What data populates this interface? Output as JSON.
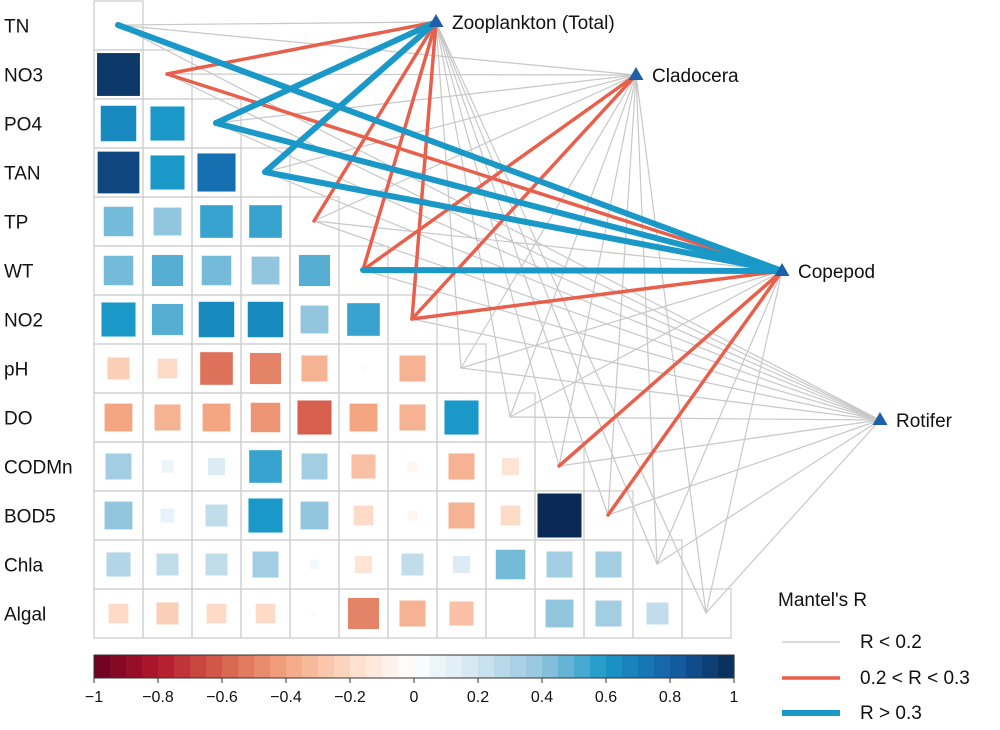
{
  "chart_data": {
    "type": "heatmap",
    "variables": [
      "TN",
      "NO3",
      "PO4",
      "TAN",
      "TP",
      "WT",
      "NO2",
      "pH",
      "DO",
      "CODMn",
      "BOD5",
      "Chla",
      "Algal"
    ],
    "correlations": [
      [],
      [
        0.95
      ],
      [
        0.65,
        0.6
      ],
      [
        0.9,
        0.6,
        0.75
      ],
      [
        0.45,
        0.4,
        0.55,
        0.55
      ],
      [
        0.45,
        0.5,
        0.45,
        0.4,
        0.5
      ],
      [
        0.6,
        0.5,
        0.65,
        0.65,
        0.4,
        0.55
      ],
      [
        -0.25,
        -0.2,
        -0.55,
        -0.5,
        -0.35,
        -0.02,
        -0.35
      ],
      [
        -0.4,
        -0.35,
        -0.4,
        -0.45,
        -0.6,
        -0.4,
        -0.35,
        0.6
      ],
      [
        0.35,
        0.08,
        0.15,
        0.55,
        0.35,
        -0.3,
        -0.05,
        -0.35,
        -0.15
      ],
      [
        0.4,
        0.1,
        0.25,
        0.6,
        0.4,
        -0.2,
        -0.05,
        -0.35,
        -0.2,
        1.0
      ],
      [
        0.3,
        0.25,
        0.25,
        0.35,
        0.05,
        -0.15,
        0.25,
        0.15,
        0.45,
        0.35,
        0.35
      ],
      [
        -0.2,
        -0.25,
        -0.2,
        -0.2,
        -0.02,
        -0.5,
        -0.35,
        -0.3,
        0.0,
        0.4,
        0.35,
        0.25
      ]
    ],
    "targets": [
      "Zooplankton (Total)",
      "Cladocera",
      "Copepod",
      "Rotifer"
    ],
    "mantel_links": {
      "Zooplankton (Total)": [
        "weak",
        "medium",
        "strong",
        "strong",
        "medium",
        "medium",
        "medium",
        "weak",
        "weak",
        "weak",
        "weak",
        "weak",
        "weak"
      ],
      "Cladocera": [
        "weak",
        "weak",
        "weak",
        "weak",
        "weak",
        "medium",
        "medium",
        "weak",
        "weak",
        "weak",
        "weak",
        "weak",
        "weak"
      ],
      "Copepod": [
        "strong",
        "medium",
        "strong",
        "strong",
        "weak",
        "strong",
        "medium",
        "weak",
        "weak",
        "medium",
        "medium",
        "weak",
        "weak"
      ],
      "Rotifer": [
        "weak",
        "weak",
        "weak",
        "weak",
        "weak",
        "weak",
        "weak",
        "weak",
        "weak",
        "weak",
        "weak",
        "weak",
        "weak"
      ]
    },
    "legend": {
      "title": "Mantel's R",
      "items": [
        {
          "label": "R < 0.2",
          "class": "weak"
        },
        {
          "label": "0.2 < R < 0.3",
          "class": "medium"
        },
        {
          "label": "R > 0.3",
          "class": "strong"
        }
      ]
    },
    "colorbar": {
      "range": [
        -1,
        1
      ],
      "ticks": [
        "−1",
        "−0.8",
        "−0.6",
        "−0.4",
        "−0.2",
        "0",
        "0.2",
        "0.4",
        "0.6",
        "0.8",
        "1"
      ]
    },
    "colors": {
      "weak": "#c8c8c8",
      "medium": "#e8604c",
      "strong": "#1a98c8",
      "target_marker": "#1f5fa8",
      "scale": [
        "#67001f",
        "#b2182b",
        "#d6604d",
        "#f4a582",
        "#fddbc7",
        "#ffffff",
        "#d1e5f0",
        "#92c5de",
        "#1a98c8",
        "#1461a8",
        "#0a2a55"
      ]
    }
  }
}
